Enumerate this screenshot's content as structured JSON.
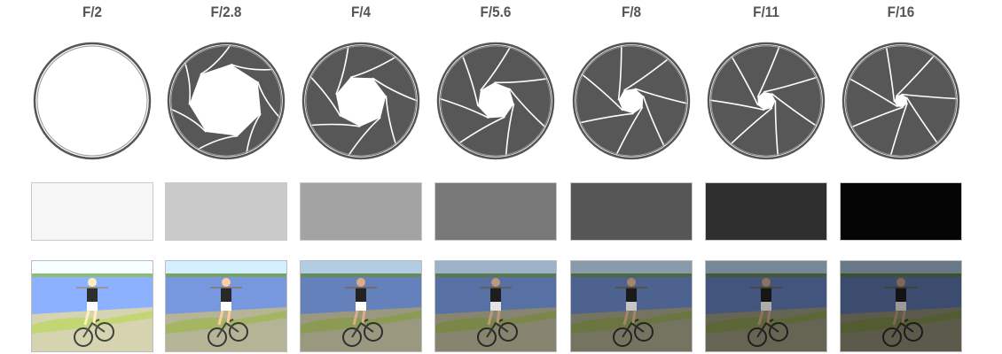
{
  "stops": [
    {
      "label": "F/2",
      "opening": 0.95,
      "tone": "#f6f6f6",
      "brightness": 1.55
    },
    {
      "label": "F/2.8",
      "opening": 0.72,
      "tone": "#cacaca",
      "brightness": 1.32
    },
    {
      "label": "F/4",
      "opening": 0.5,
      "tone": "#a3a3a3",
      "brightness": 1.12
    },
    {
      "label": "F/5.6",
      "opening": 0.36,
      "tone": "#787878",
      "brightness": 0.98
    },
    {
      "label": "F/8",
      "opening": 0.25,
      "tone": "#565656",
      "brightness": 0.85
    },
    {
      "label": "F/11",
      "opening": 0.18,
      "tone": "#2f2f2f",
      "brightness": 0.74
    },
    {
      "label": "F/16",
      "opening": 0.13,
      "tone": "#050505",
      "brightness": 0.66
    }
  ],
  "colors": {
    "blade": "#575757",
    "ring": "#555555",
    "blade_edge": "#ffffff"
  }
}
